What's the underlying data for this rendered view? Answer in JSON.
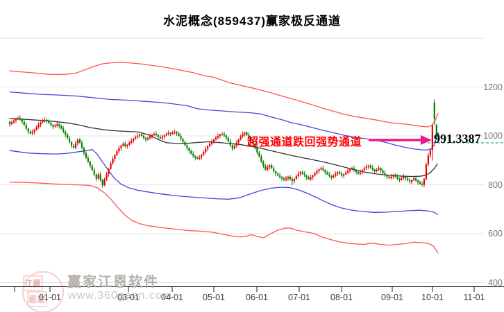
{
  "header": {
    "title": "水泥概念(859437)赢家极反通道"
  },
  "annotation": {
    "text": "超强通道跌回强势通道",
    "value_label": "991.3387",
    "text_color": "#ff0000",
    "arrow_color": "#ee1889"
  },
  "watermark": {
    "brand": "赢家江恩软件",
    "url": "www.360gann.com",
    "seal_top": "江赢",
    "seal_bottom": "恩家"
  },
  "colors": {
    "up": "#e60000",
    "down": "#008000",
    "channel_red": "#ff5252",
    "channel_blue": "#4545d6",
    "channel_mid": "#303030",
    "grid": "#e4e4e4",
    "axis": "#1a1a1a",
    "level_line": "#00a040",
    "seal": "#e8a5a5"
  },
  "chart_data": {
    "type": "candlestick",
    "title": "水泥概念(859437)赢家极反通道",
    "ylabel": "",
    "xlabel": "",
    "ylim": [
      400,
      1400
    ],
    "grid_values": [
      1400,
      1200,
      1000,
      800,
      600,
      400
    ],
    "y_ticks": [
      {
        "value": 1200,
        "label": "1200"
      },
      {
        "value": 1000,
        "label": "1000"
      },
      {
        "value": 800,
        "label": "800"
      },
      {
        "value": 600,
        "label": "600"
      },
      {
        "value": 400,
        "label": "400"
      }
    ],
    "x_ticks": [
      {
        "x": 21,
        "label": ""
      },
      {
        "x": 72,
        "label": "01-01"
      },
      {
        "x": 185,
        "label": "03-01"
      },
      {
        "x": 248,
        "label": "04-01"
      },
      {
        "x": 308,
        "label": "05-01"
      },
      {
        "x": 370,
        "label": "06-01"
      },
      {
        "x": 431,
        "label": "07-01"
      },
      {
        "x": 492,
        "label": "08-01"
      },
      {
        "x": 565,
        "label": "09-01"
      },
      {
        "x": 623,
        "label": "10-01"
      },
      {
        "x": 683,
        "label": "11-01"
      }
    ],
    "level_line": {
      "value": 991.3387,
      "style": "dashed",
      "color_name": "green"
    },
    "closes": [
      1048,
      1056,
      1063,
      1070,
      1074,
      1068,
      1058,
      1045,
      1030,
      1018,
      1010,
      1016,
      1025,
      1036,
      1046,
      1055,
      1062,
      1066,
      1060,
      1052,
      1045,
      1038,
      1042,
      1048,
      1040,
      1030,
      1018,
      1005,
      990,
      975,
      960,
      952,
      970,
      985,
      972,
      952,
      930,
      910,
      895,
      878,
      860,
      842,
      825,
      842,
      820,
      798,
      822,
      843,
      865,
      888,
      906,
      922,
      937,
      950,
      960,
      968,
      958,
      963,
      972,
      980,
      988,
      995,
      1001,
      1006,
      1000,
      992,
      985,
      991,
      998,
      1004,
      1009,
      1003,
      996,
      990,
      996,
      1002,
      1008,
      1012,
      1008,
      1013,
      1016,
      1010,
      1000,
      988,
      975,
      962,
      950,
      938,
      927,
      917,
      910,
      907,
      912,
      922,
      934,
      947,
      958,
      968,
      977,
      985,
      993,
      1000,
      1005,
      1008,
      1002,
      992,
      978,
      962,
      948,
      958,
      972,
      985,
      998,
      1008,
      1013,
      1004,
      993,
      980,
      966,
      950,
      932,
      915,
      896,
      878,
      862,
      872,
      880,
      868,
      855,
      845,
      838,
      832,
      826,
      820,
      826,
      833,
      822,
      815,
      824,
      835,
      845,
      852,
      845,
      838,
      830,
      823,
      830,
      838,
      847,
      856,
      863,
      868,
      860,
      851,
      843,
      836,
      830,
      837,
      845,
      852,
      845,
      837,
      843,
      850,
      857,
      863,
      868,
      860,
      852,
      845,
      852,
      860,
      868,
      874,
      878,
      870,
      862,
      855,
      862,
      868,
      858,
      848,
      840,
      833,
      827,
      834,
      840,
      833,
      826,
      820,
      827,
      834,
      826,
      818,
      812,
      819,
      826,
      818,
      810,
      804,
      800,
      823,
      883,
      920,
      942,
      1043,
      1069,
      1005,
      991.34
    ],
    "overrides": {
      "0": {
        "open": 1058
      },
      "45": {
        "low": 788
      },
      "137": {
        "low": 798
      },
      "205": {
        "low": 899,
        "high": 1048
      },
      "206": {
        "open": 1137,
        "high": 1150,
        "low": 1043
      },
      "207": {
        "open": 1045
      },
      "208": {
        "low": 984
      }
    },
    "channels": {
      "upper_red": [
        [
          14,
          1266
        ],
        [
          30,
          1262
        ],
        [
          50,
          1258
        ],
        [
          70,
          1252
        ],
        [
          85,
          1251
        ],
        [
          100,
          1253
        ],
        [
          110,
          1258
        ],
        [
          122,
          1270
        ],
        [
          135,
          1284
        ],
        [
          148,
          1295
        ],
        [
          160,
          1299
        ],
        [
          175,
          1301
        ],
        [
          190,
          1298
        ],
        [
          205,
          1294
        ],
        [
          220,
          1288
        ],
        [
          235,
          1282
        ],
        [
          250,
          1275
        ],
        [
          265,
          1266
        ],
        [
          278,
          1259
        ],
        [
          288,
          1251
        ],
        [
          296,
          1245
        ],
        [
          306,
          1241
        ],
        [
          318,
          1230
        ],
        [
          330,
          1218
        ],
        [
          345,
          1208
        ],
        [
          360,
          1198
        ],
        [
          375,
          1188
        ],
        [
          390,
          1177
        ],
        [
          405,
          1164
        ],
        [
          420,
          1152
        ],
        [
          435,
          1140
        ],
        [
          450,
          1127
        ],
        [
          465,
          1113
        ],
        [
          480,
          1101
        ],
        [
          495,
          1089
        ],
        [
          510,
          1080
        ],
        [
          525,
          1073
        ],
        [
          540,
          1066
        ],
        [
          555,
          1058
        ],
        [
          570,
          1051
        ],
        [
          585,
          1048
        ],
        [
          598,
          1043
        ],
        [
          608,
          1039
        ],
        [
          616,
          1037
        ],
        [
          622,
          1042
        ],
        [
          627,
          1064
        ],
        [
          631,
          1092
        ]
      ],
      "upper_blue": [
        [
          14,
          1180
        ],
        [
          35,
          1175
        ],
        [
          60,
          1170
        ],
        [
          85,
          1167
        ],
        [
          110,
          1163
        ],
        [
          135,
          1156
        ],
        [
          160,
          1149
        ],
        [
          185,
          1146
        ],
        [
          210,
          1141
        ],
        [
          235,
          1136
        ],
        [
          255,
          1129
        ],
        [
          270,
          1123
        ],
        [
          285,
          1111
        ],
        [
          300,
          1106
        ],
        [
          320,
          1102
        ],
        [
          340,
          1098
        ],
        [
          360,
          1095
        ],
        [
          375,
          1090
        ],
        [
          390,
          1078
        ],
        [
          405,
          1067
        ],
        [
          420,
          1054
        ],
        [
          435,
          1045
        ],
        [
          450,
          1034
        ],
        [
          465,
          1023
        ],
        [
          480,
          1013
        ],
        [
          495,
          1003
        ],
        [
          510,
          995
        ],
        [
          525,
          989
        ],
        [
          540,
          983
        ],
        [
          555,
          974
        ],
        [
          570,
          962
        ],
        [
          585,
          952
        ],
        [
          598,
          946
        ],
        [
          608,
          943
        ],
        [
          615,
          942
        ],
        [
          621,
          947
        ],
        [
          626,
          964
        ],
        [
          629,
          994
        ],
        [
          631,
          1013
        ]
      ],
      "middle": [
        [
          14,
          1071
        ],
        [
          45,
          1066
        ],
        [
          75,
          1060
        ],
        [
          100,
          1052
        ],
        [
          115,
          1044
        ],
        [
          130,
          1034
        ],
        [
          150,
          1025
        ],
        [
          170,
          1020
        ],
        [
          200,
          1016
        ],
        [
          215,
          1003
        ],
        [
          228,
          985
        ],
        [
          240,
          972
        ],
        [
          255,
          969
        ],
        [
          270,
          970
        ],
        [
          285,
          973
        ],
        [
          300,
          976
        ],
        [
          315,
          973
        ],
        [
          330,
          969
        ],
        [
          345,
          965
        ],
        [
          360,
          958
        ],
        [
          375,
          950
        ],
        [
          390,
          940
        ],
        [
          405,
          930
        ],
        [
          420,
          920
        ],
        [
          435,
          911
        ],
        [
          450,
          903
        ],
        [
          465,
          894
        ],
        [
          480,
          884
        ],
        [
          495,
          873
        ],
        [
          510,
          862
        ],
        [
          525,
          852
        ],
        [
          540,
          845
        ],
        [
          555,
          840
        ],
        [
          570,
          837
        ],
        [
          582,
          835
        ],
        [
          595,
          834
        ],
        [
          605,
          835
        ],
        [
          613,
          839
        ],
        [
          620,
          850
        ],
        [
          626,
          868
        ],
        [
          630,
          885
        ]
      ],
      "lower_blue": [
        [
          14,
          940
        ],
        [
          40,
          930
        ],
        [
          60,
          927
        ],
        [
          80,
          926
        ],
        [
          95,
          928
        ],
        [
          110,
          934
        ],
        [
          125,
          940
        ],
        [
          133,
          944
        ],
        [
          140,
          925
        ],
        [
          148,
          892
        ],
        [
          156,
          860
        ],
        [
          165,
          826
        ],
        [
          174,
          803
        ],
        [
          185,
          788
        ],
        [
          198,
          778
        ],
        [
          212,
          771
        ],
        [
          228,
          764
        ],
        [
          245,
          758
        ],
        [
          262,
          753
        ],
        [
          280,
          749
        ],
        [
          300,
          745
        ],
        [
          315,
          742
        ],
        [
          330,
          741
        ],
        [
          345,
          747
        ],
        [
          360,
          762
        ],
        [
          375,
          776
        ],
        [
          390,
          786
        ],
        [
          405,
          790
        ],
        [
          418,
          788
        ],
        [
          430,
          779
        ],
        [
          442,
          766
        ],
        [
          455,
          749
        ],
        [
          468,
          731
        ],
        [
          480,
          716
        ],
        [
          492,
          705
        ],
        [
          505,
          697
        ],
        [
          520,
          691
        ],
        [
          538,
          687
        ],
        [
          556,
          688
        ],
        [
          574,
          691
        ],
        [
          590,
          694
        ],
        [
          604,
          696
        ],
        [
          616,
          693
        ],
        [
          625,
          688
        ],
        [
          630,
          679
        ]
      ],
      "lower_red": [
        [
          14,
          811
        ],
        [
          50,
          808
        ],
        [
          80,
          803
        ],
        [
          105,
          800
        ],
        [
          120,
          799
        ],
        [
          130,
          797
        ],
        [
          140,
          788
        ],
        [
          150,
          768
        ],
        [
          160,
          740
        ],
        [
          170,
          706
        ],
        [
          180,
          676
        ],
        [
          190,
          654
        ],
        [
          202,
          640
        ],
        [
          214,
          632
        ],
        [
          228,
          627
        ],
        [
          244,
          621
        ],
        [
          260,
          616
        ],
        [
          276,
          612
        ],
        [
          292,
          610
        ],
        [
          308,
          605
        ],
        [
          322,
          597
        ],
        [
          335,
          590
        ],
        [
          346,
          586
        ],
        [
          354,
          589
        ],
        [
          362,
          596
        ],
        [
          370,
          589
        ],
        [
          380,
          583
        ],
        [
          390,
          600
        ],
        [
          400,
          614
        ],
        [
          410,
          622
        ],
        [
          418,
          623
        ],
        [
          428,
          614
        ],
        [
          440,
          607
        ],
        [
          452,
          601
        ],
        [
          464,
          586
        ],
        [
          476,
          576
        ],
        [
          488,
          567
        ],
        [
          500,
          561
        ],
        [
          512,
          558
        ],
        [
          524,
          556
        ],
        [
          536,
          561
        ],
        [
          548,
          556
        ],
        [
          560,
          553
        ],
        [
          572,
          556
        ],
        [
          584,
          559
        ],
        [
          596,
          565
        ],
        [
          606,
          563
        ],
        [
          614,
          561
        ],
        [
          620,
          557
        ],
        [
          625,
          547
        ],
        [
          628,
          533
        ],
        [
          631,
          521
        ]
      ]
    }
  }
}
